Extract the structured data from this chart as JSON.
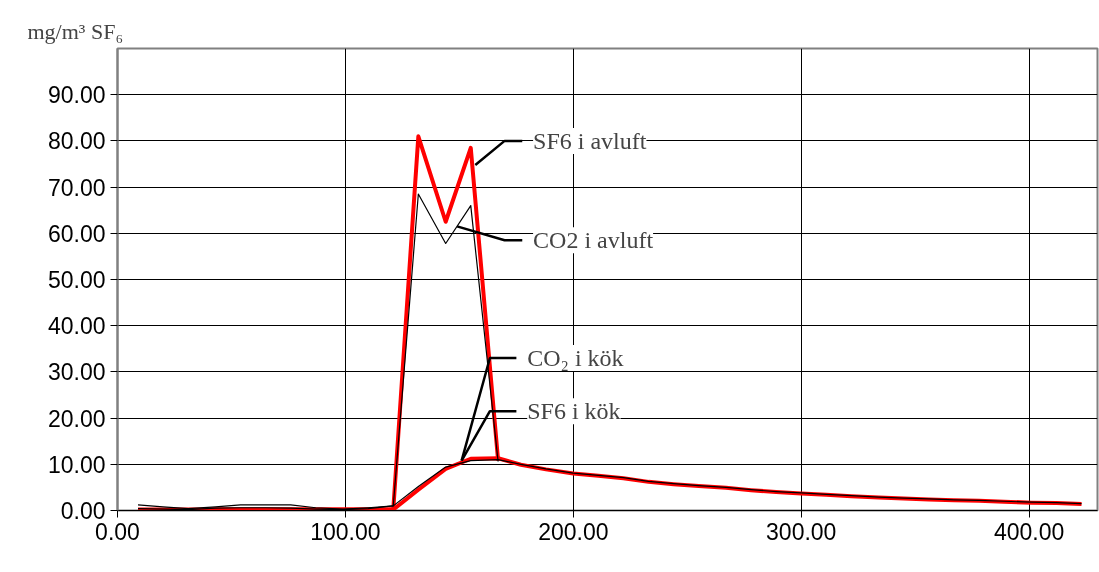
{
  "chart_data": {
    "type": "line",
    "ylabel": "mg/m³ SF₆",
    "x": [
      9,
      20,
      31,
      43,
      54,
      65,
      76,
      87,
      99,
      110,
      121,
      132,
      144,
      155,
      167,
      177,
      188,
      200,
      211,
      222,
      233,
      244,
      255,
      267,
      278,
      289,
      300,
      311,
      322,
      334,
      345,
      356,
      367,
      378,
      389,
      401,
      412,
      423
    ],
    "series": [
      {
        "color": "#ff0000",
        "values": [
          0.2,
          0.2,
          0.2,
          0.2,
          0.2,
          0.2,
          0.2,
          0.2,
          0.2,
          0.2,
          0.2,
          81,
          62.5,
          78.5,
          10.8,
          null,
          null,
          null,
          null,
          null,
          null,
          null,
          null,
          null,
          null,
          null,
          null,
          null,
          null,
          null,
          null,
          null,
          null,
          null,
          null,
          null,
          null,
          null
        ]
      },
      {
        "color": "#000000",
        "values": [
          1.2,
          0.8,
          0.4,
          0.8,
          1.2,
          1.2,
          1.2,
          0.6,
          0.3,
          0.6,
          1.0,
          68.5,
          57.8,
          66,
          10.6,
          null,
          null,
          null,
          null,
          null,
          null,
          null,
          null,
          null,
          null,
          null,
          null,
          null,
          null,
          null,
          null,
          null,
          null,
          null,
          null,
          null,
          null,
          null
        ]
      },
      {
        "color": "#000000",
        "values": [
          0.4,
          0.3,
          0.2,
          0.5,
          0.6,
          0.6,
          0.5,
          0.3,
          0.2,
          0.4,
          1.0,
          5.2,
          9.4,
          10.8,
          11,
          10,
          9,
          8.1,
          7.6,
          7.1,
          6.3,
          5.8,
          5.4,
          5,
          4.5,
          4.1,
          3.8,
          3.5,
          3.2,
          2.9,
          2.7,
          2.5,
          2.3,
          2.2,
          2,
          1.8,
          1.7,
          1.5
        ]
      },
      {
        "color": "#ff0000",
        "values": [
          0,
          0,
          0,
          0.2,
          0.2,
          0.2,
          0.2,
          0.2,
          0.2,
          0.2,
          0.2,
          4.5,
          9,
          11.2,
          11.3,
          9.9,
          8.9,
          8,
          7.5,
          7,
          6.2,
          5.7,
          5.3,
          4.9,
          4.4,
          4,
          3.7,
          3.4,
          3.1,
          2.8,
          2.6,
          2.4,
          2.2,
          2.1,
          1.9,
          1.7,
          1.6,
          1.4
        ]
      }
    ],
    "annotations": [
      {
        "text": "SF6 i avluft",
        "x": 157,
        "y": 74.8
      },
      {
        "text": "CO2 i avluft",
        "x": 149,
        "y": 61.5
      },
      {
        "text": "CO₂ i kök",
        "x": 151,
        "y": 10.8
      },
      {
        "text": "SF6 i kök",
        "x": 151,
        "y": 10.8
      }
    ],
    "xlim": [
      0,
      430
    ],
    "ylim": [
      0,
      100
    ],
    "xticks": [
      {
        "value": 0,
        "label": "0.00"
      },
      {
        "value": 100,
        "label": "100.00"
      },
      {
        "value": 200,
        "label": "200.00"
      },
      {
        "value": 300,
        "label": "300.00"
      },
      {
        "value": 400,
        "label": "400.00"
      }
    ],
    "yticks": [
      {
        "value": 0,
        "label": "0.00"
      },
      {
        "value": 10,
        "label": "10.00"
      },
      {
        "value": 20,
        "label": "20.00"
      },
      {
        "value": 30,
        "label": "30.00"
      },
      {
        "value": 40,
        "label": "40.00"
      },
      {
        "value": 50,
        "label": "50.00"
      },
      {
        "value": 60,
        "label": "60.00"
      },
      {
        "value": 70,
        "label": "70.00"
      },
      {
        "value": 80,
        "label": "80.00"
      },
      {
        "value": 90,
        "label": "90.00"
      }
    ],
    "grid": true,
    "marker": "none",
    "line_style": "solid"
  }
}
